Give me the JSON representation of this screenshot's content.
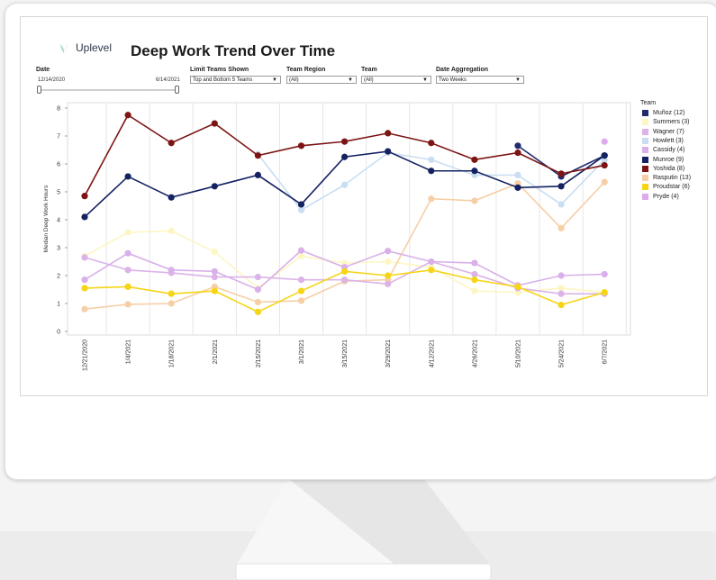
{
  "brand": {
    "name": "Uplevel"
  },
  "header": {
    "title": "Deep Work Trend Over Time"
  },
  "filters": {
    "date": {
      "label": "Date",
      "start": "12/14/2020",
      "end": "6/14/2021"
    },
    "limit_teams": {
      "label": "Limit Teams Shown",
      "value": "Top and Bottom 5 Teams"
    },
    "team_region": {
      "label": "Team Region",
      "value": "(All)"
    },
    "team": {
      "label": "Team",
      "value": "(All)"
    },
    "date_aggregation": {
      "label": "Date Aggregation",
      "value": "Two Weeks"
    }
  },
  "legend": {
    "title": "Team",
    "items": [
      {
        "label": "Muñoz (12)",
        "color": "#1f2b6e"
      },
      {
        "label": "Summers (3)",
        "color": "#fdf6c3"
      },
      {
        "label": "Wagner (7)",
        "color": "#dcb3e8"
      },
      {
        "label": "Howlett (3)",
        "color": "#c9def2"
      },
      {
        "label": "Cassidy (4)",
        "color": "#d9b0ea"
      },
      {
        "label": "Munroe (9)",
        "color": "#142262"
      },
      {
        "label": "Yoshida (8)",
        "color": "#7d1414"
      },
      {
        "label": "Rasputin (13)",
        "color": "#f6cfa6"
      },
      {
        "label": "Proudstar (6)",
        "color": "#f5d515"
      },
      {
        "label": "Pryde (4)",
        "color": "#dfa9ee"
      }
    ]
  },
  "chart_data": {
    "type": "line",
    "ylabel": "Median Deep Work Hours",
    "xlabel": "",
    "ylim": [
      0,
      8
    ],
    "yticks": [
      0,
      1,
      2,
      3,
      4,
      5,
      6,
      7,
      8
    ],
    "categories": [
      "12/21/2020",
      "1/4/2021",
      "1/18/2021",
      "2/1/2021",
      "2/15/2021",
      "3/1/2021",
      "3/15/2021",
      "3/29/2021",
      "4/12/2021",
      "4/26/2021",
      "5/10/2021",
      "5/24/2021",
      "6/7/2021"
    ],
    "grid": true,
    "legend_position": "right",
    "series": [
      {
        "name": "Summers (3)",
        "color": "#fdf6c3",
        "values": [
          2.7,
          3.55,
          3.6,
          2.85,
          1.55,
          2.7,
          2.45,
          2.5,
          2.3,
          1.45,
          1.4,
          1.55,
          1.4
        ]
      },
      {
        "name": "Howlett (3)",
        "color": "#c9def2",
        "values": [
          null,
          null,
          null,
          null,
          6.35,
          4.35,
          5.25,
          6.4,
          6.15,
          5.6,
          5.6,
          4.55,
          6.15
        ]
      },
      {
        "name": "Rasputin (13)",
        "color": "#f6cfa6",
        "values": [
          0.8,
          0.97,
          1.0,
          1.6,
          1.05,
          1.1,
          1.8,
          1.85,
          4.75,
          4.68,
          5.3,
          3.7,
          5.35
        ]
      },
      {
        "name": "Wagner (7)",
        "color": "#dcb3e8",
        "values": [
          2.65,
          2.2,
          2.1,
          1.95,
          1.95,
          1.85,
          1.85,
          1.7,
          2.5,
          2.05,
          1.55,
          1.35,
          1.35
        ]
      },
      {
        "name": "Cassidy (4)",
        "color": "#d9b0ea",
        "values": [
          1.85,
          2.8,
          2.2,
          2.15,
          1.5,
          2.9,
          2.3,
          2.88,
          2.5,
          2.45,
          1.65,
          2.0,
          2.05
        ]
      },
      {
        "name": "Pryde (4)",
        "color": "#dfa9ee",
        "values": [
          null,
          null,
          null,
          null,
          null,
          null,
          null,
          null,
          null,
          null,
          null,
          null,
          6.8
        ]
      },
      {
        "name": "Proudstar (6)",
        "color": "#f5d515",
        "values": [
          1.55,
          1.6,
          1.35,
          1.45,
          0.7,
          1.45,
          2.15,
          2.0,
          2.2,
          1.85,
          1.6,
          0.95,
          1.4
        ]
      },
      {
        "name": "Muñoz (12)",
        "color": "#1f2b6e",
        "values": [
          null,
          null,
          null,
          null,
          null,
          null,
          null,
          null,
          null,
          null,
          6.65,
          5.55,
          6.3
        ]
      },
      {
        "name": "Munroe (9)",
        "color": "#142262",
        "values": [
          4.1,
          5.55,
          4.8,
          5.2,
          5.6,
          4.55,
          6.25,
          6.45,
          5.75,
          5.75,
          5.15,
          5.2,
          6.3
        ]
      },
      {
        "name": "Yoshida (8)",
        "color": "#7d1414",
        "values": [
          4.85,
          7.75,
          6.75,
          7.45,
          6.3,
          6.65,
          6.8,
          7.1,
          6.75,
          6.15,
          6.4,
          5.65,
          5.95
        ]
      }
    ]
  }
}
